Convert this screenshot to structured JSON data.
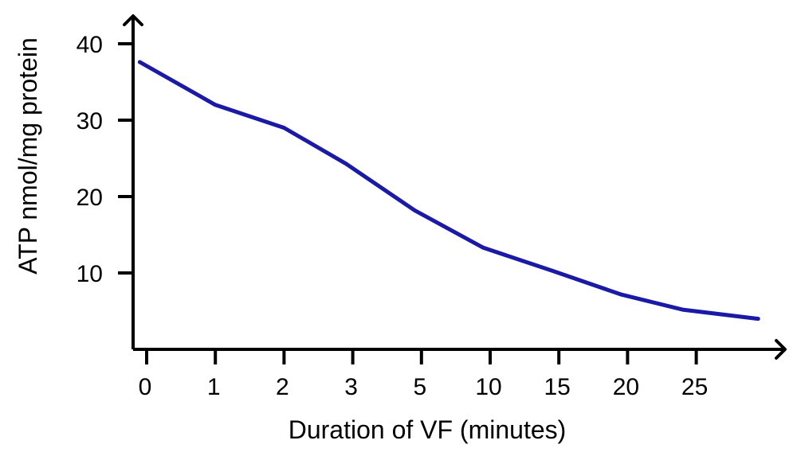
{
  "chart_data": {
    "type": "line",
    "title": "",
    "xlabel": "Duration of VF (minutes)",
    "ylabel": "ATP nmol/mg protein",
    "x_tick_labels": [
      "0",
      "1",
      "2",
      "3",
      "5",
      "10",
      "15",
      "20",
      "25"
    ],
    "y_tick_labels": [
      "10",
      "20",
      "30",
      "40"
    ],
    "ylim": [
      0,
      40
    ],
    "x_scale": "categorical (non-linear minute labels)",
    "grid": false,
    "legend": "none",
    "line_color": "#1a1aa6",
    "series": [
      {
        "x": [
          -0.1,
          1.0,
          2.0,
          2.9,
          3.9,
          4.9,
          5.9,
          6.9,
          7.8,
          8.9
        ],
        "values": [
          37.6,
          32.0,
          29.0,
          24.3,
          18.2,
          13.3,
          10.3,
          7.2,
          5.2,
          4.0
        ]
      }
    ]
  }
}
